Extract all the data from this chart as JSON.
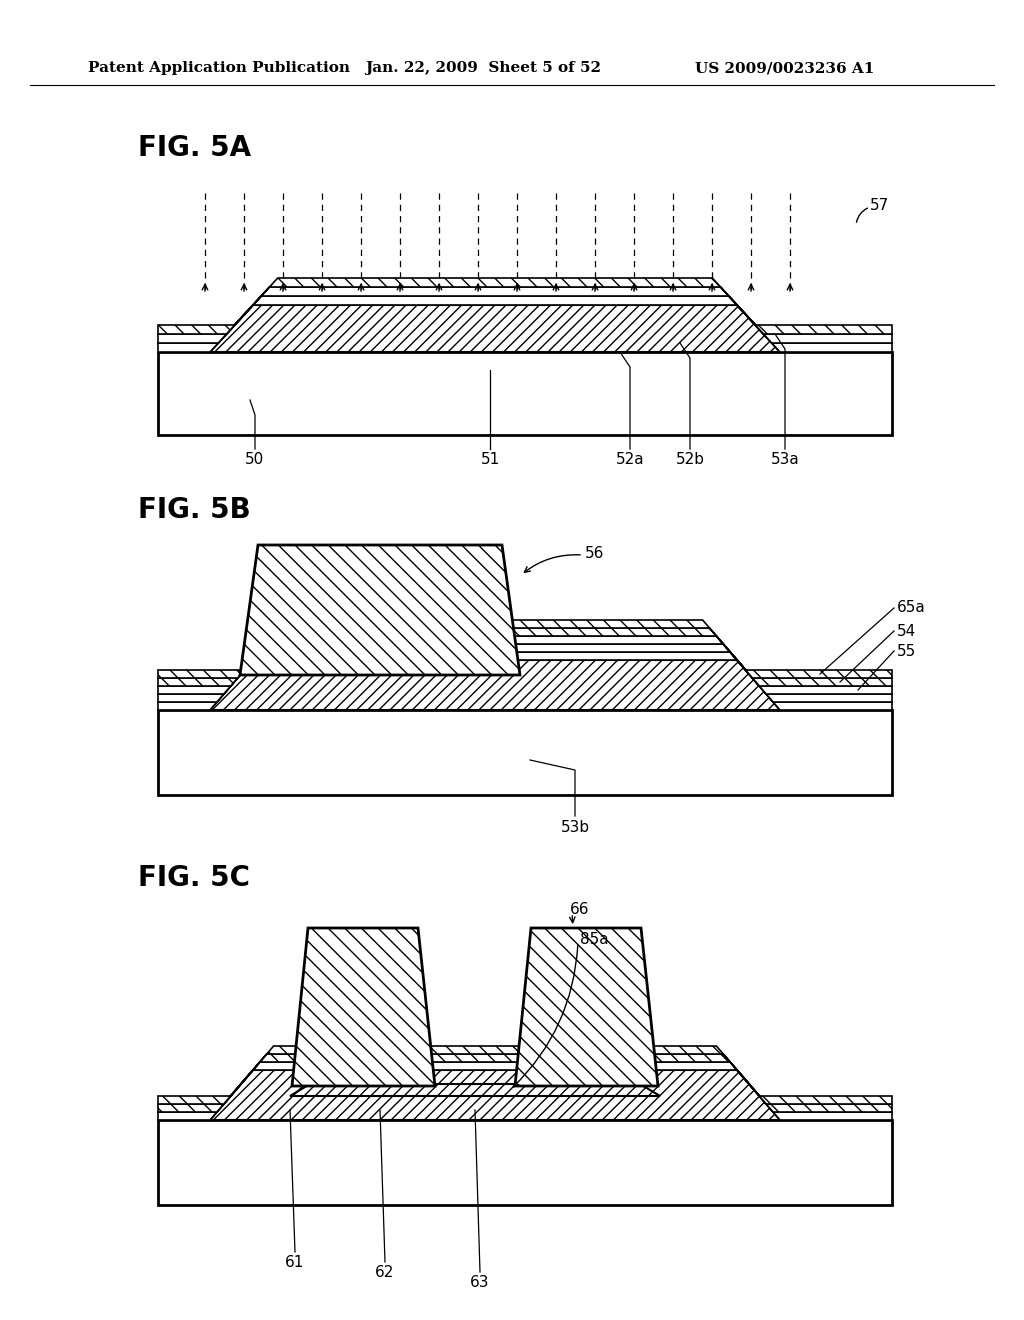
{
  "bg_color": "#ffffff",
  "header_left": "Patent Application Publication",
  "header_center": "Jan. 22, 2009  Sheet 5 of 52",
  "header_right": "US 2009/0023236 A1",
  "fig5a_label": "FIG. 5A",
  "fig5b_label": "FIG. 5B",
  "fig5c_label": "FIG. 5C",
  "labels_5a": [
    "57",
    "50",
    "51",
    "52a",
    "52b",
    "53a"
  ],
  "labels_5b": [
    "56",
    "65a",
    "55",
    "54",
    "53b"
  ],
  "labels_5c": [
    "66",
    "85a",
    "61",
    "62",
    "63"
  ],
  "header_fontsize": 11,
  "fig_label_fontsize": 20,
  "anno_fontsize": 11
}
